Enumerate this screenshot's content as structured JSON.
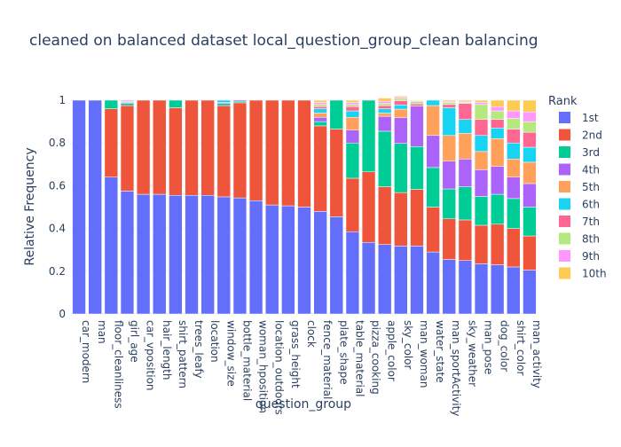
{
  "chart_data": {
    "type": "bar",
    "barmode": "stack",
    "title": "cleaned on balanced dataset local_question_group_clean balancing",
    "xlabel": "question_group",
    "ylabel": "Relative Frequency",
    "ylim": [
      0,
      1
    ],
    "yticks": [
      "0",
      "0.2",
      "0.4",
      "0.6",
      "0.8",
      "1"
    ],
    "legend_title": "Rank",
    "legend_position": "right",
    "categories": [
      "car_modern",
      "man",
      "floor_cleanliness",
      "girl_age",
      "car_vposition",
      "hair_length",
      "shirt_pattern",
      "trees_leafy",
      "location",
      "window_size",
      "bottle_material",
      "woman_hposition",
      "location_outdoors",
      "grass_height",
      "clock",
      "fence_material",
      "plate_shape",
      "table_material",
      "pizza_cooking",
      "apple_color",
      "sky_color",
      "man_woman",
      "water_state",
      "man_sportActivity",
      "sky_weather",
      "man_pose",
      "dog_color",
      "shirt_color",
      "man_activity"
    ],
    "series": [
      {
        "name": "1st",
        "color": "#636efa",
        "values": [
          1.0,
          1.0,
          0.64,
          0.575,
          0.56,
          0.56,
          0.555,
          0.555,
          0.555,
          0.548,
          0.543,
          0.53,
          0.51,
          0.506,
          0.5,
          0.48,
          0.455,
          0.385,
          0.335,
          0.325,
          0.318,
          0.318,
          0.29,
          0.255,
          0.25,
          0.235,
          0.23,
          0.22,
          0.205
        ]
      },
      {
        "name": "2nd",
        "color": "#ef553b",
        "values": [
          0,
          0,
          0.32,
          0.4,
          0.44,
          0.44,
          0.41,
          0.445,
          0.445,
          0.427,
          0.445,
          0.47,
          0.49,
          0.494,
          0.5,
          0.4,
          0.41,
          0.25,
          0.33,
          0.27,
          0.25,
          0.265,
          0.21,
          0.19,
          0.19,
          0.18,
          0.19,
          0.18,
          0.16
        ]
      },
      {
        "name": "3rd",
        "color": "#00cc96",
        "values": [
          0,
          0,
          0.04,
          0.01,
          0,
          0,
          0.035,
          0,
          0,
          0.01,
          0.007,
          0,
          0,
          0,
          0,
          0.02,
          0.135,
          0.165,
          0.335,
          0.26,
          0.23,
          0.2,
          0.185,
          0.14,
          0.155,
          0.135,
          0.14,
          0.14,
          0.135
        ]
      },
      {
        "name": "4th",
        "color": "#ab63fa",
        "values": [
          0,
          0,
          0,
          0.005,
          0,
          0,
          0,
          0,
          0,
          0.005,
          0.005,
          0,
          0,
          0,
          0,
          0.02,
          0,
          0.06,
          0,
          0.07,
          0.12,
          0.19,
          0.15,
          0.13,
          0.13,
          0.125,
          0.13,
          0.1,
          0.11
        ]
      },
      {
        "name": "5th",
        "color": "#ffa15a",
        "values": [
          0,
          0,
          0,
          0,
          0,
          0,
          0,
          0,
          0,
          0,
          0,
          0,
          0,
          0,
          0,
          0.02,
          0,
          0.06,
          0,
          0.015,
          0.04,
          0,
          0.14,
          0.12,
          0.12,
          0.085,
          0.13,
          0.085,
          0.1
        ]
      },
      {
        "name": "6th",
        "color": "#19d3f3",
        "values": [
          0,
          0,
          0,
          0,
          0,
          0,
          0,
          0,
          0,
          0.01,
          0,
          0,
          0,
          0,
          0,
          0.02,
          0,
          0.03,
          0,
          0.02,
          0.02,
          0,
          0.025,
          0.13,
          0.065,
          0.075,
          0.05,
          0.075,
          0.07
        ]
      },
      {
        "name": "7th",
        "color": "#ff6692",
        "values": [
          0,
          0,
          0,
          0,
          0,
          0,
          0,
          0,
          0,
          0,
          0,
          0,
          0,
          0,
          0,
          0.01,
          0,
          0.02,
          0,
          0.015,
          0.02,
          0.01,
          0,
          0.015,
          0.075,
          0.075,
          0.04,
          0.065,
          0.07
        ]
      },
      {
        "name": "8th",
        "color": "#b6e880",
        "values": [
          0,
          0,
          0,
          0.005,
          0,
          0,
          0,
          0,
          0,
          0,
          0,
          0,
          0,
          0,
          0,
          0.01,
          0,
          0.01,
          0,
          0.01,
          0.01,
          0.01,
          0,
          0.01,
          0.005,
          0.07,
          0.04,
          0.05,
          0.05
        ]
      },
      {
        "name": "9th",
        "color": "#ff97ff",
        "values": [
          0,
          0,
          0,
          0.005,
          0,
          0,
          0,
          0,
          0,
          0,
          0,
          0,
          0,
          0,
          0,
          0.01,
          0,
          0.01,
          0,
          0.01,
          0.006,
          0.004,
          0,
          0.005,
          0.005,
          0.01,
          0.02,
          0.035,
          0.045
        ]
      },
      {
        "name": "10th",
        "color": "#fecb52",
        "values": [
          0,
          0,
          0,
          0,
          0,
          0,
          0,
          0,
          0,
          0,
          0,
          0,
          0,
          0,
          0,
          0.01,
          0,
          0.01,
          0,
          0.015,
          0.006,
          0.003,
          0,
          0.005,
          0.005,
          0.01,
          0.03,
          0.05,
          0.055
        ]
      }
    ]
  }
}
